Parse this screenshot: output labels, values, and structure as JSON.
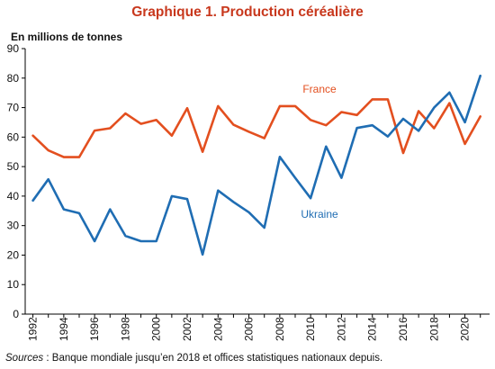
{
  "title": "Graphique 1. Production céréalière",
  "unit_label": "En millions de tonnes",
  "source_label": "Sources",
  "source_text": " : Banque mondiale jusqu’en 2018 et offices statistiques nationaux depuis.",
  "colors": {
    "title": "#c8381d",
    "France": "#e34f1f",
    "Ukraine": "#1f6db3",
    "axis": "#000000"
  },
  "chart_data": {
    "type": "line",
    "x": [
      1992,
      1993,
      1994,
      1995,
      1996,
      1997,
      1998,
      1999,
      2000,
      2001,
      2002,
      2003,
      2004,
      2005,
      2006,
      2007,
      2008,
      2009,
      2010,
      2011,
      2012,
      2013,
      2014,
      2015,
      2016,
      2017,
      2018,
      2019,
      2020,
      2021
    ],
    "xticks": [
      1992,
      1994,
      1996,
      1998,
      2000,
      2002,
      2004,
      2006,
      2008,
      2010,
      2012,
      2014,
      2016,
      2018,
      2020
    ],
    "ylim": [
      0,
      90
    ],
    "yticks": [
      0,
      10,
      20,
      30,
      40,
      50,
      60,
      70,
      80,
      90
    ],
    "grid": false,
    "series": [
      {
        "name": "France",
        "values": [
          60.5,
          55.5,
          53.2,
          53.2,
          62.2,
          63.0,
          68.0,
          64.5,
          65.8,
          60.5,
          69.8,
          55.0,
          70.5,
          64.2,
          61.8,
          59.6,
          70.5,
          70.5,
          65.8,
          64.0,
          68.5,
          67.5,
          72.8,
          72.8,
          54.6,
          68.8,
          63.0,
          71.5,
          57.7,
          67.0
        ]
      },
      {
        "name": "Ukraine",
        "values": [
          38.5,
          45.7,
          35.5,
          34.2,
          24.7,
          35.5,
          26.5,
          24.7,
          24.7,
          40.0,
          39.0,
          20.2,
          41.9,
          38.0,
          34.5,
          29.3,
          53.3,
          46.2,
          39.3,
          56.8,
          46.2,
          63.1,
          64.0,
          60.2,
          66.2,
          62.1,
          70.0,
          75.1,
          65.0,
          80.8
        ]
      }
    ]
  }
}
